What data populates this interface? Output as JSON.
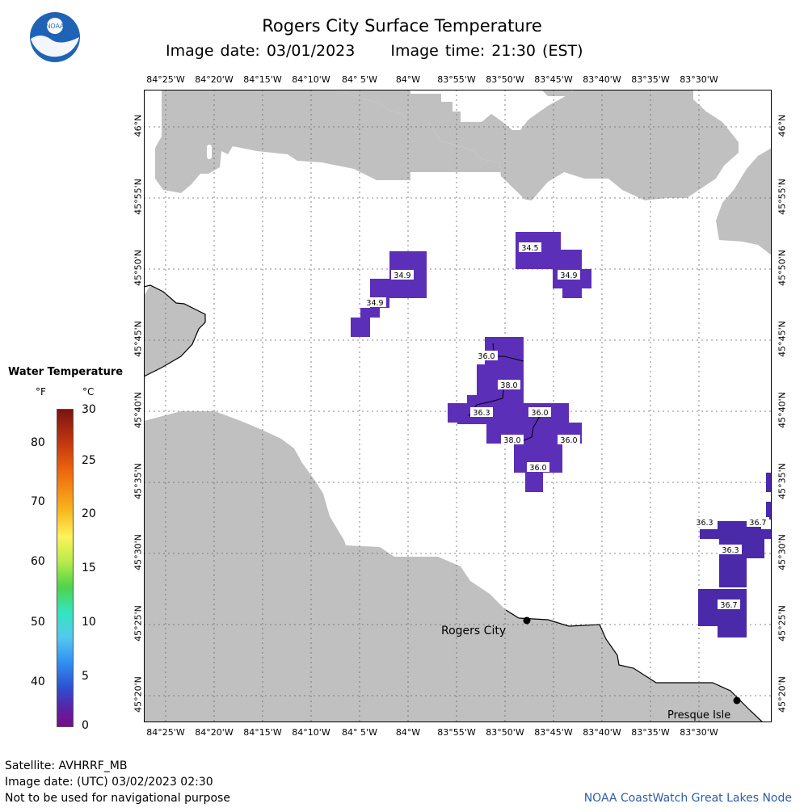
{
  "header": {
    "title": "Rogers City Surface Temperature",
    "image_date": "Image date: 03/01/2023",
    "image_time": "Image time: 21:30 (EST)"
  },
  "logo": {
    "text": "NOAA"
  },
  "map": {
    "lon_labels": [
      "84°25'W",
      "84°20'W",
      "84°15'W",
      "84°10'W",
      "84° 5'W",
      "84°W",
      "83°55'W",
      "83°50'W",
      "83°45'W",
      "83°40'W",
      "83°35'W",
      "83°30'W"
    ],
    "lat_labels": [
      "46°N",
      "45°55'N",
      "45°50'N",
      "45°45'N",
      "45°40'N",
      "45°35'N",
      "45°30'N",
      "45°25'N",
      "45°20'N"
    ],
    "places": [
      {
        "name": "Rogers City"
      },
      {
        "name": "Presque Isle"
      }
    ],
    "temperature_labels": [
      {
        "id": "t1",
        "text": "34.9"
      },
      {
        "id": "t2",
        "text": "34.9"
      },
      {
        "id": "t3",
        "text": "34.5"
      },
      {
        "id": "t4",
        "text": "34.9"
      },
      {
        "id": "t5",
        "text": "36.0"
      },
      {
        "id": "t6",
        "text": "38.0"
      },
      {
        "id": "t7",
        "text": "36.3"
      },
      {
        "id": "t8",
        "text": "36.0"
      },
      {
        "id": "t9",
        "text": "38.0"
      },
      {
        "id": "t10",
        "text": "36.0"
      },
      {
        "id": "t11",
        "text": "36.0"
      },
      {
        "id": "t12",
        "text": "36.3"
      },
      {
        "id": "t13",
        "text": "36.7"
      },
      {
        "id": "t14",
        "text": "36.3"
      },
      {
        "id": "t15",
        "text": "36.7"
      }
    ],
    "colors": {
      "land": "#c0c0c0",
      "water": "#ffffff",
      "cold_pixel": "#5b2fb8",
      "cold_pixel2": "#4a2aa8",
      "grid": "#666666"
    }
  },
  "legend": {
    "title": "Water Temperature",
    "unit_f": "°F",
    "unit_c": "°C",
    "f_ticks": [
      "80",
      "70",
      "60",
      "50",
      "40"
    ],
    "c_ticks": [
      "30",
      "25",
      "20",
      "15",
      "10",
      "5",
      "0"
    ]
  },
  "footer": {
    "satellite": "Satellite: AVHRRF_MB",
    "utc_date": "Image date: (UTC) 03/02/2023  02:30",
    "disclaimer": "Not to be used for navigational purpose",
    "credit": "NOAA CoastWatch Great Lakes Node"
  }
}
